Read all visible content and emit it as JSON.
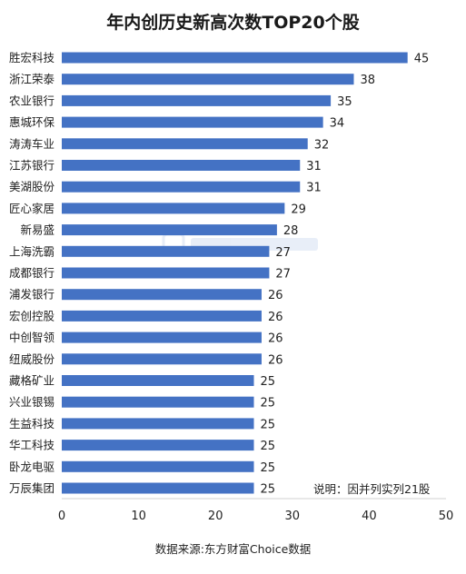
{
  "chart_data": {
    "type": "bar",
    "orientation": "horizontal",
    "title": "年内创历史新高次数TOP20个股",
    "categories": [
      "胜宏科技",
      "浙江荣泰",
      "农业银行",
      "惠城环保",
      "涛涛车业",
      "江苏银行",
      "美湖股份",
      "匠心家居",
      "新易盛",
      "上海洗霸",
      "成都银行",
      "浦发银行",
      "宏创控股",
      "中创智领",
      "纽威股份",
      "藏格矿业",
      "兴业银锡",
      "生益科技",
      "华工科技",
      "卧龙电驱",
      "万辰集团"
    ],
    "values": [
      45,
      38,
      35,
      34,
      32,
      31,
      31,
      29,
      28,
      27,
      27,
      26,
      26,
      26,
      26,
      25,
      25,
      25,
      25,
      25,
      25
    ],
    "xlim": [
      0,
      50
    ],
    "xticks": [
      0,
      10,
      20,
      30,
      40,
      50
    ],
    "bar_color": "#4472c4",
    "grid": false,
    "note": "说明：因并列实列21股",
    "source": "数据来源:东方财富Choice数据"
  }
}
